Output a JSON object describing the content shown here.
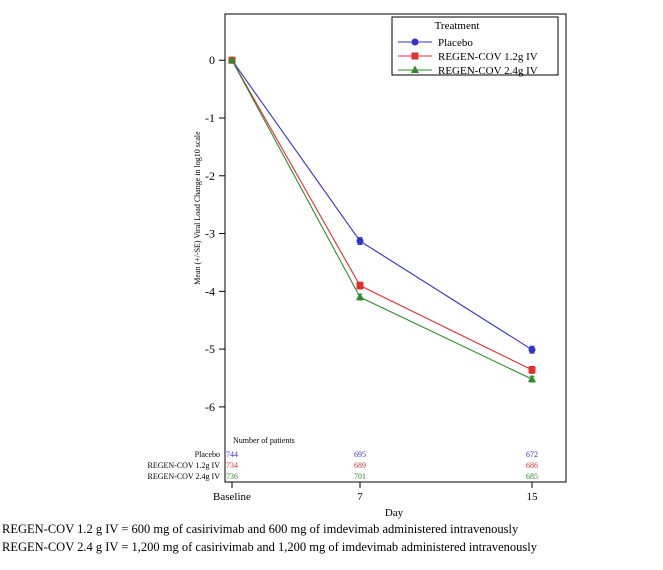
{
  "chart_data": {
    "type": "line",
    "title": "",
    "xlabel": "Day",
    "ylabel": "Mean (+/-SE) Viral Load Change in log10 scale",
    "categories": [
      "Baseline",
      "7",
      "15"
    ],
    "ylim": [
      -7.3,
      0.8
    ],
    "yticks": [
      0,
      -1,
      -2,
      -3,
      -4,
      -5,
      -6
    ],
    "grid": false,
    "legend": {
      "title": "Treatment",
      "position": "top-right"
    },
    "series": [
      {
        "name": "Placebo",
        "color": "#3333cc",
        "marker": "circle",
        "values": [
          0,
          -3.13,
          -5.01
        ],
        "se": [
          0.02,
          0.06,
          0.06
        ]
      },
      {
        "name": "REGEN-COV 1.2g IV",
        "color": "#e03030",
        "marker": "square",
        "values": [
          0,
          -3.9,
          -5.36
        ],
        "se": [
          0.02,
          0.06,
          0.06
        ]
      },
      {
        "name": "REGEN-COV 2.4g IV",
        "color": "#2e8b2e",
        "marker": "triangle",
        "values": [
          0,
          -4.1,
          -5.52
        ],
        "se": [
          0.02,
          0.05,
          0.05
        ]
      }
    ],
    "patients_table": {
      "title": "Number of patients",
      "rows": [
        {
          "label": "Placebo",
          "counts": [
            "744",
            "695",
            "672"
          ]
        },
        {
          "label": "REGEN-COV 1.2g IV",
          "counts": [
            "734",
            "689",
            "686"
          ]
        },
        {
          "label": "REGEN-COV 2.4g IV",
          "counts": [
            "736",
            "701",
            "685"
          ]
        }
      ]
    }
  },
  "footnotes": [
    "REGEN-COV 1.2 g IV = 600 mg of casirivimab and 600 mg of imdevimab administered intravenously",
    "REGEN-COV 2.4 g IV = 1,200 mg of casirivimab and 1,200 mg of imdevimab administered intravenously"
  ]
}
